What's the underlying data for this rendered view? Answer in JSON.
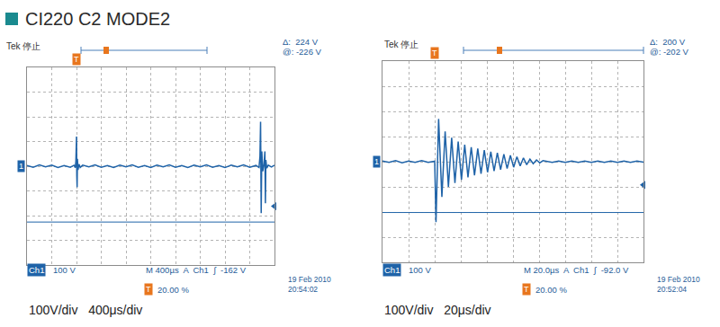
{
  "title": "CI220 C2 MODE2",
  "chart_data": [
    {
      "type": "line",
      "header": "Tek 停止",
      "cursor_readout": [
        "Δ:  224 V",
        "@: -226 V"
      ],
      "cursor_at": -226,
      "channel_marker": "1",
      "channel": "Ch1",
      "scale": "100 V",
      "status": "M 400µs  A  Ch1  ∫  -162 V",
      "trigger_level": -162,
      "trigger_icon": "T",
      "trigger_x": 0,
      "trigger_position": "20.00 %",
      "date": "19 Feb 2010",
      "time": "20:54:02",
      "caption": "100V/div   400μs/div",
      "color": "#1f63a8",
      "x": [
        -800,
        -700,
        -600,
        -500,
        -400,
        -300,
        -200,
        -100,
        -40,
        -20,
        -10,
        0,
        5,
        10,
        15,
        25,
        40,
        60,
        100,
        200,
        300,
        400,
        500,
        600,
        700,
        800,
        900,
        1000,
        1100,
        1200,
        1300,
        1400,
        1500,
        1600,
        1700,
        1800,
        1900,
        2000,
        2100,
        2200,
        2300,
        2400,
        2500,
        2600,
        2700,
        2800,
        2900,
        2950,
        2965,
        2975,
        2985,
        2995,
        3010,
        3030,
        3045,
        3053,
        3060,
        3075,
        3100,
        3150,
        3200
      ],
      "values": [
        3,
        -4,
        5,
        -3,
        4,
        -5,
        3,
        -4,
        4,
        -6,
        20,
        120,
        -40,
        -85,
        30,
        -15,
        8,
        -5,
        4,
        -3,
        5,
        -4,
        3,
        -5,
        4,
        -3,
        5,
        -4,
        3,
        -5,
        4,
        -3,
        5,
        -4,
        3,
        -5,
        4,
        -3,
        5,
        -4,
        3,
        -5,
        4,
        -3,
        5,
        -4,
        3,
        -5,
        40,
        180,
        -190,
        60,
        -20,
        8,
        60,
        -150,
        25,
        -8,
        4,
        -3,
        4
      ],
      "xlim": [
        -800,
        3200
      ],
      "ylim": [
        -400,
        400
      ],
      "xticks": [
        -800,
        -400,
        0,
        400,
        800,
        1200,
        1600,
        2000,
        2400,
        2800,
        3200
      ],
      "yticks": [
        -400,
        -300,
        -200,
        -100,
        0,
        100,
        200,
        300,
        400
      ],
      "grid": true,
      "tick_labels": false
    },
    {
      "type": "line",
      "header": "Tek 停止",
      "cursor_readout": [
        "Δ:  200 V",
        "@: -202 V"
      ],
      "cursor_at": -202,
      "channel_marker": "1",
      "channel": "Ch1",
      "scale": "100 V",
      "status": "M 20.0µs  A  Ch1  ∫  -92.0 V",
      "trigger_level": -92,
      "trigger_icon": "T",
      "trigger_x": 0,
      "trigger_position": "20.00 %",
      "date": "19 Feb 2010",
      "time": "20:52:04",
      "caption": "100V/div   20μs/div",
      "color": "#1f63a8",
      "x": [
        -40,
        -35,
        -30,
        -25,
        -20,
        -15,
        -10,
        -5,
        0,
        1,
        3,
        5.5,
        8,
        10.5,
        13,
        15.5,
        18,
        20.5,
        23,
        25.5,
        28,
        30.5,
        33,
        35.5,
        38,
        40.5,
        43,
        45.5,
        48,
        50.5,
        53,
        55.5,
        58,
        60.5,
        63,
        65.5,
        68,
        70.5,
        73,
        75.5,
        78,
        80.5,
        83,
        90,
        95,
        100,
        105,
        110,
        115,
        120,
        125,
        130,
        135,
        140,
        145,
        150,
        155,
        160
      ],
      "values": [
        3,
        -3,
        4,
        -4,
        3,
        -3,
        4,
        -3,
        2,
        -240,
        170,
        -140,
        120,
        -100,
        95,
        -85,
        80,
        -72,
        68,
        -62,
        58,
        -54,
        52,
        -48,
        46,
        -42,
        40,
        -37,
        35,
        -32,
        30,
        -27,
        25,
        -22,
        20,
        -17,
        15,
        -12,
        10,
        -8,
        7,
        -5,
        4,
        -3,
        3,
        -3,
        3,
        -3,
        3,
        -3,
        3,
        -3,
        3,
        -3,
        3,
        -3,
        3,
        -2
      ],
      "xlim": [
        -40,
        160
      ],
      "ylim": [
        -400,
        400
      ],
      "xticks": [
        -40,
        -20,
        0,
        20,
        40,
        60,
        80,
        100,
        120,
        140,
        160
      ],
      "yticks": [
        -400,
        -300,
        -200,
        -100,
        0,
        100,
        200,
        300,
        400
      ],
      "grid": true,
      "tick_labels": false
    }
  ]
}
